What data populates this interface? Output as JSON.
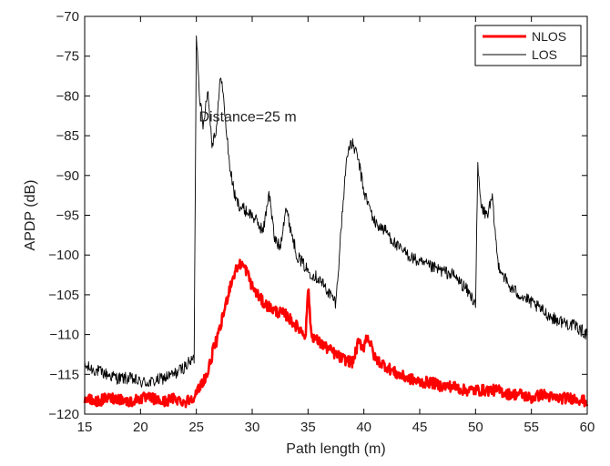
{
  "chart_data": {
    "type": "line",
    "title": "",
    "xlabel": "Path length (m)",
    "ylabel": "APDP (dB)",
    "xlim": [
      15,
      60
    ],
    "ylim": [
      -120,
      -70
    ],
    "xticks": [
      15,
      20,
      25,
      30,
      35,
      40,
      45,
      50,
      55,
      60
    ],
    "xtick_labels": [
      "15",
      "20",
      "25",
      "30",
      "35",
      "40",
      "45",
      "50",
      "55",
      "60"
    ],
    "yticks": [
      -70,
      -75,
      -80,
      -85,
      -90,
      -95,
      -100,
      -105,
      -110,
      -115,
      -120
    ],
    "ytick_labels": [
      "−70",
      "−75",
      "−80",
      "−85",
      "−90",
      "−95",
      "−100",
      "−105",
      "−110",
      "−115",
      "−120"
    ],
    "grid": false,
    "legend_position": "top-right",
    "annotations": [
      {
        "text": "Distance=25 m",
        "x": 29.6,
        "y": -82.5
      }
    ],
    "series": [
      {
        "name": "NLOS",
        "color": "#ff0000",
        "x": [
          15,
          16,
          17,
          18,
          19,
          20,
          21,
          22,
          23,
          24,
          24.5,
          25,
          25.5,
          26,
          26.5,
          27,
          27.5,
          28,
          28.5,
          29,
          29.5,
          30,
          30.5,
          31,
          32,
          33,
          34,
          34.8,
          35,
          35.3,
          36,
          37,
          38,
          39,
          39.5,
          40,
          40.3,
          41,
          42,
          43,
          44,
          45,
          46,
          47,
          48,
          49,
          50,
          51,
          52,
          53,
          54,
          55,
          56,
          57,
          58,
          59,
          60
        ],
        "y": [
          -118,
          -118.5,
          -118,
          -118,
          -118.5,
          -118,
          -118,
          -118.5,
          -118,
          -118.5,
          -118,
          -117.5,
          -116,
          -115,
          -112,
          -110,
          -107,
          -104,
          -102,
          -101,
          -102,
          -104,
          -105,
          -106,
          -107,
          -107.5,
          -109,
          -110,
          -104,
          -110,
          -111,
          -112,
          -113,
          -113.5,
          -111,
          -111.5,
          -110,
          -113,
          -114,
          -115,
          -115.5,
          -116,
          -116,
          -116.5,
          -116.5,
          -117,
          -117,
          -117,
          -117,
          -117.5,
          -117.5,
          -118,
          -117.5,
          -118,
          -118,
          -118,
          -118.5
        ]
      },
      {
        "name": "LOS",
        "color": "#000000",
        "x": [
          15,
          16,
          17,
          18,
          19,
          20,
          21,
          22,
          23,
          24,
          24.8,
          25,
          25.3,
          25.6,
          26,
          26.4,
          26.8,
          27.2,
          27.6,
          28,
          28.5,
          29,
          30,
          31,
          31.5,
          32,
          32.5,
          33,
          33.5,
          34,
          35,
          36,
          37,
          37.5,
          38,
          38.5,
          39,
          39.5,
          40,
          40.5,
          41,
          42,
          43,
          44,
          45,
          46,
          47,
          48,
          49,
          50,
          50.2,
          50.5,
          51,
          51.5,
          52,
          53,
          54,
          55,
          56,
          57,
          58,
          59,
          60
        ],
        "y": [
          -114,
          -114.5,
          -115,
          -115.5,
          -115.5,
          -116,
          -116,
          -115.5,
          -115,
          -114,
          -113,
          -72,
          -80,
          -84,
          -79,
          -86,
          -84,
          -77,
          -83,
          -89,
          -93,
          -94,
          -95,
          -97,
          -92,
          -98,
          -99,
          -94,
          -97,
          -100,
          -102,
          -103,
          -105,
          -106,
          -96,
          -87,
          -86,
          -88,
          -92,
          -94,
          -96,
          -97,
          -99,
          -100,
          -101,
          -101.5,
          -102,
          -102.5,
          -104,
          -106,
          -89,
          -94,
          -95,
          -93,
          -101,
          -104,
          -105,
          -106,
          -107,
          -108,
          -108.5,
          -109,
          -110
        ]
      }
    ]
  }
}
